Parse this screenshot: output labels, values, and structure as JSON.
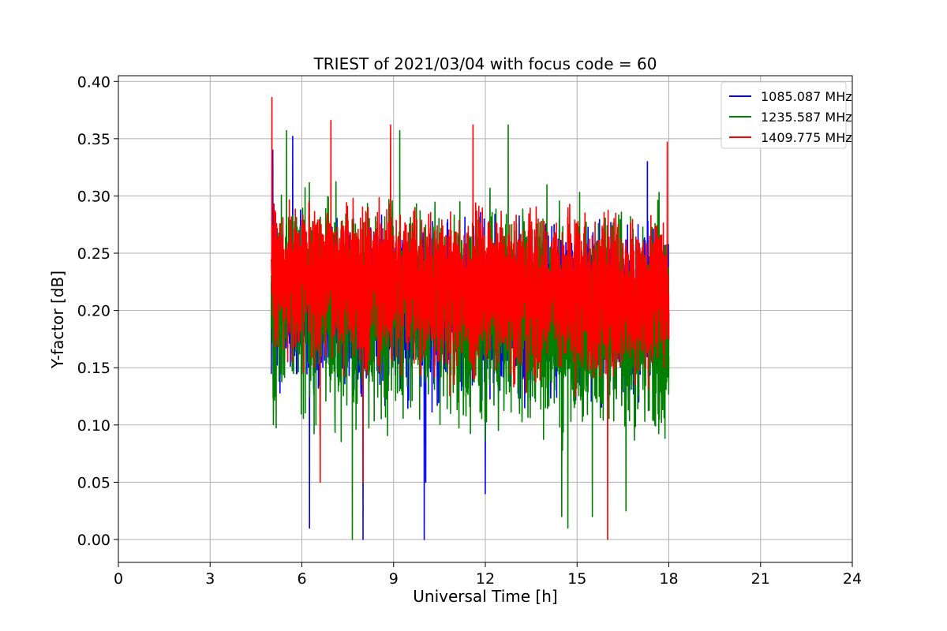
{
  "chart_data": {
    "type": "line",
    "title": "TRIEST of 2021/03/04 with focus code = 60",
    "xlabel": "Universal Time [h]",
    "ylabel": "Y-factor [dB]",
    "xlim": [
      0,
      24
    ],
    "ylim": [
      -0.02,
      0.405
    ],
    "xticks": [
      0,
      3,
      6,
      9,
      12,
      15,
      18,
      21,
      24
    ],
    "yticks": [
      0.0,
      0.05,
      0.1,
      0.15,
      0.2,
      0.25,
      0.3,
      0.35,
      0.4
    ],
    "ytick_labels": [
      "0.00",
      "0.05",
      "0.10",
      "0.15",
      "0.20",
      "0.25",
      "0.30",
      "0.35",
      "0.40"
    ],
    "grid": true,
    "legend_position": "top-right",
    "x_range_of_data": [
      5.0,
      18.0
    ],
    "series": [
      {
        "name": "1085.087 MHz",
        "color": "#0000ff",
        "mean_start": 0.215,
        "mean_end": 0.195,
        "spread_low": 0.1,
        "spread_high": 0.3,
        "spikes": [
          {
            "x": 5.05,
            "y": 0.34
          },
          {
            "x": 5.7,
            "y": 0.352
          },
          {
            "x": 6.25,
            "y": 0.01
          },
          {
            "x": 8.0,
            "y": 0.0
          },
          {
            "x": 10.0,
            "y": 0.0
          },
          {
            "x": 10.05,
            "y": 0.05
          },
          {
            "x": 12.0,
            "y": 0.04
          },
          {
            "x": 17.3,
            "y": 0.33
          }
        ]
      },
      {
        "name": "1235.587 MHz",
        "color": "#008000",
        "mean_start": 0.22,
        "mean_end": 0.18,
        "spread_low": 0.07,
        "spread_high": 0.32,
        "spikes": [
          {
            "x": 5.5,
            "y": 0.357
          },
          {
            "x": 7.65,
            "y": 0.0
          },
          {
            "x": 9.2,
            "y": 0.357
          },
          {
            "x": 12.75,
            "y": 0.362
          },
          {
            "x": 14.5,
            "y": 0.02
          },
          {
            "x": 14.7,
            "y": 0.01
          },
          {
            "x": 15.5,
            "y": 0.02
          },
          {
            "x": 16.6,
            "y": 0.025
          }
        ]
      },
      {
        "name": "1409.775 MHz",
        "color": "#ff0000",
        "mean_start": 0.235,
        "mean_end": 0.21,
        "spread_low": 0.12,
        "spread_high": 0.31,
        "spikes": [
          {
            "x": 5.02,
            "y": 0.386
          },
          {
            "x": 6.95,
            "y": 0.366
          },
          {
            "x": 8.9,
            "y": 0.362
          },
          {
            "x": 11.6,
            "y": 0.362
          },
          {
            "x": 16.0,
            "y": 0.0
          },
          {
            "x": 17.95,
            "y": 0.347
          },
          {
            "x": 6.6,
            "y": 0.05
          },
          {
            "x": 8.0,
            "y": 0.05
          }
        ]
      }
    ]
  }
}
